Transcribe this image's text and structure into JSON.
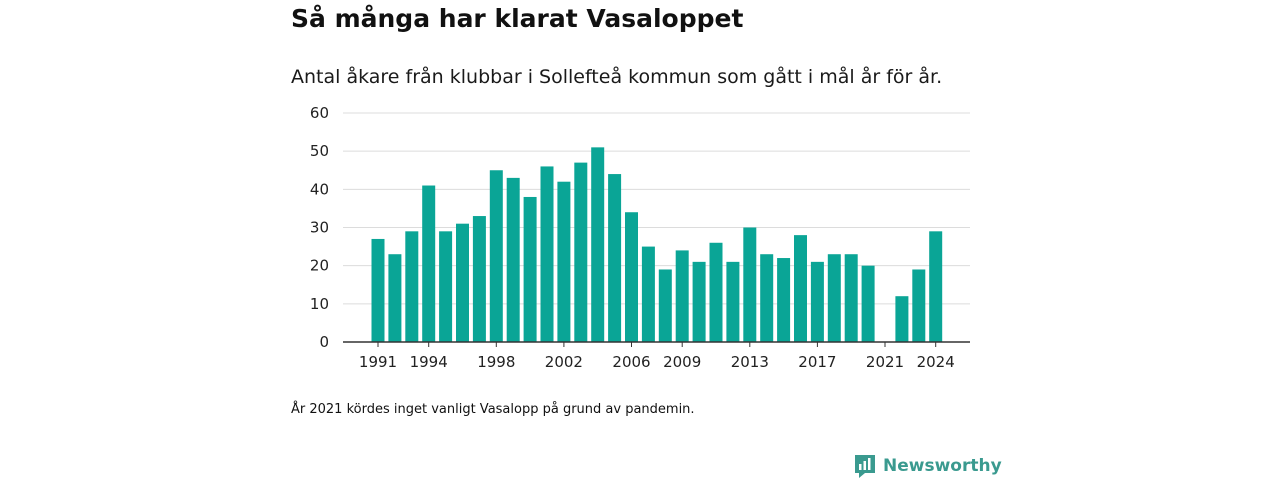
{
  "header": {
    "title": "Så många har klarat Vasaloppet",
    "subtitle": "Antal åkare från klubbar i Sollefteå kommun som gått i mål år för år."
  },
  "footer": {
    "note": "År 2021 kördes inget vanligt Vasalopp på grund av pandemin.",
    "brand": "Newsworthy"
  },
  "colors": {
    "bar": "#0aa596",
    "grid": "#dcdcdc",
    "axis": "#333333",
    "brand": "#3a9a8f"
  },
  "icons": {
    "brand_logo": "newsworthy-logo-icon"
  },
  "chart_data": {
    "type": "bar",
    "title": "Så många har klarat Vasaloppet",
    "subtitle": "Antal åkare från klubbar i Sollefteå kommun som gått i mål år för år.",
    "xlabel": "",
    "ylabel": "",
    "categories": [
      1991,
      1992,
      1993,
      1994,
      1995,
      1996,
      1997,
      1998,
      1999,
      2000,
      2001,
      2002,
      2003,
      2004,
      2005,
      2006,
      2007,
      2008,
      2009,
      2010,
      2011,
      2012,
      2013,
      2014,
      2015,
      2016,
      2017,
      2018,
      2019,
      2020,
      2021,
      2022,
      2023,
      2024
    ],
    "values": [
      27,
      23,
      29,
      41,
      29,
      31,
      33,
      45,
      43,
      38,
      46,
      42,
      47,
      51,
      44,
      34,
      25,
      19,
      24,
      21,
      26,
      21,
      30,
      23,
      22,
      28,
      21,
      23,
      23,
      20,
      null,
      12,
      19,
      29
    ],
    "x_tick_labels": [
      "1991",
      "1994",
      "1998",
      "2002",
      "2006",
      "2009",
      "2013",
      "2017",
      "2021",
      "2024"
    ],
    "y_ticks": [
      0,
      10,
      20,
      30,
      40,
      50,
      60
    ],
    "ylim": [
      0,
      60
    ],
    "grid": true,
    "legend": "none"
  }
}
